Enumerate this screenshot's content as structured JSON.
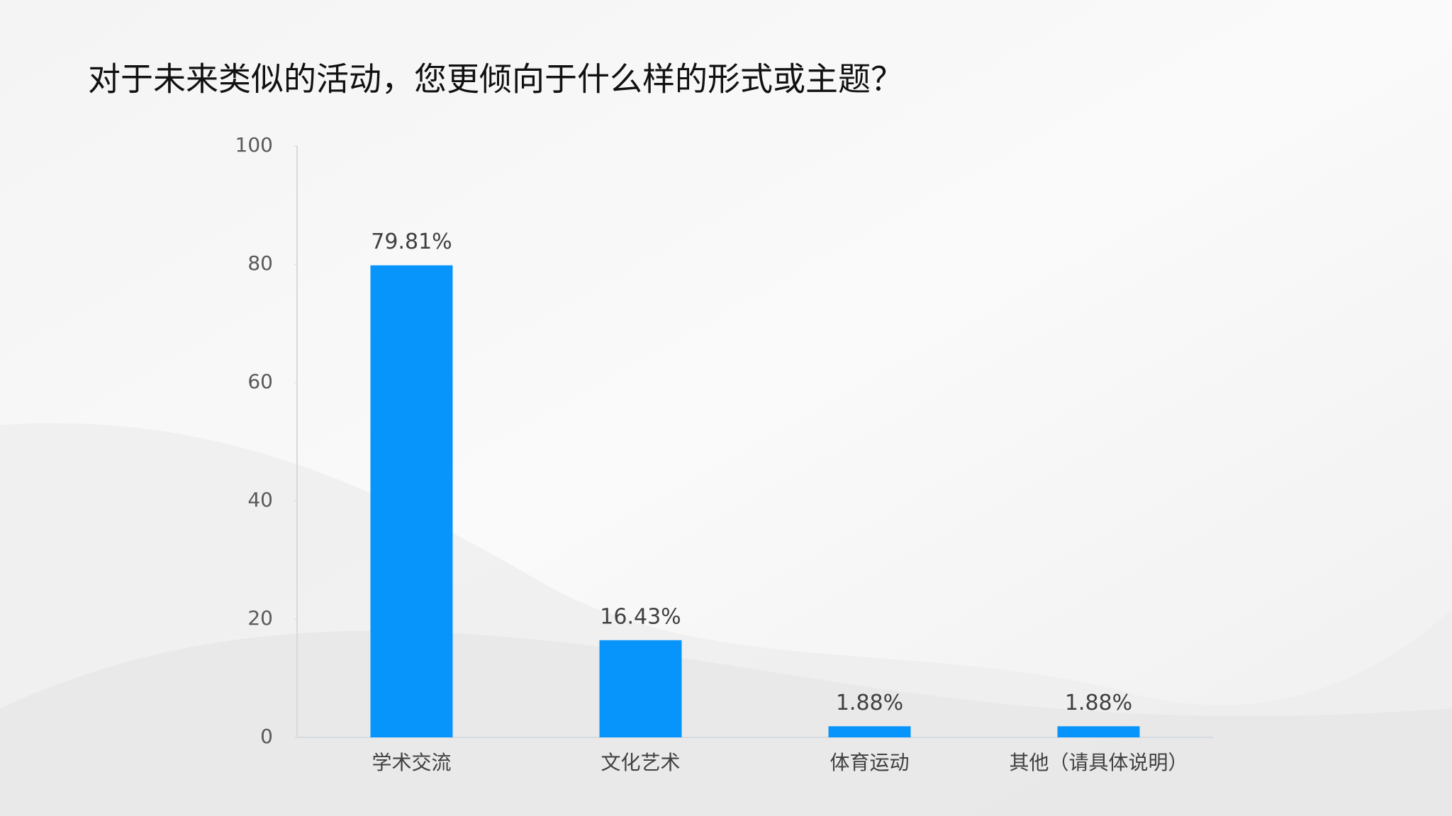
{
  "chart_data": {
    "type": "bar",
    "title": "对于未来类似的活动，您更倾向于什么样的形式或主题？",
    "categories": [
      "学术交流",
      "文化艺术",
      "体育运动",
      "其他（请具体说明）"
    ],
    "values": [
      79.81,
      16.43,
      1.88,
      1.88
    ],
    "value_labels": [
      "79.81%",
      "16.43%",
      "1.88%",
      "1.88%"
    ],
    "color": "#0795fb",
    "ylim": [
      0,
      100
    ],
    "yticks": [
      0,
      20,
      40,
      60,
      80,
      100
    ],
    "grid": false
  }
}
